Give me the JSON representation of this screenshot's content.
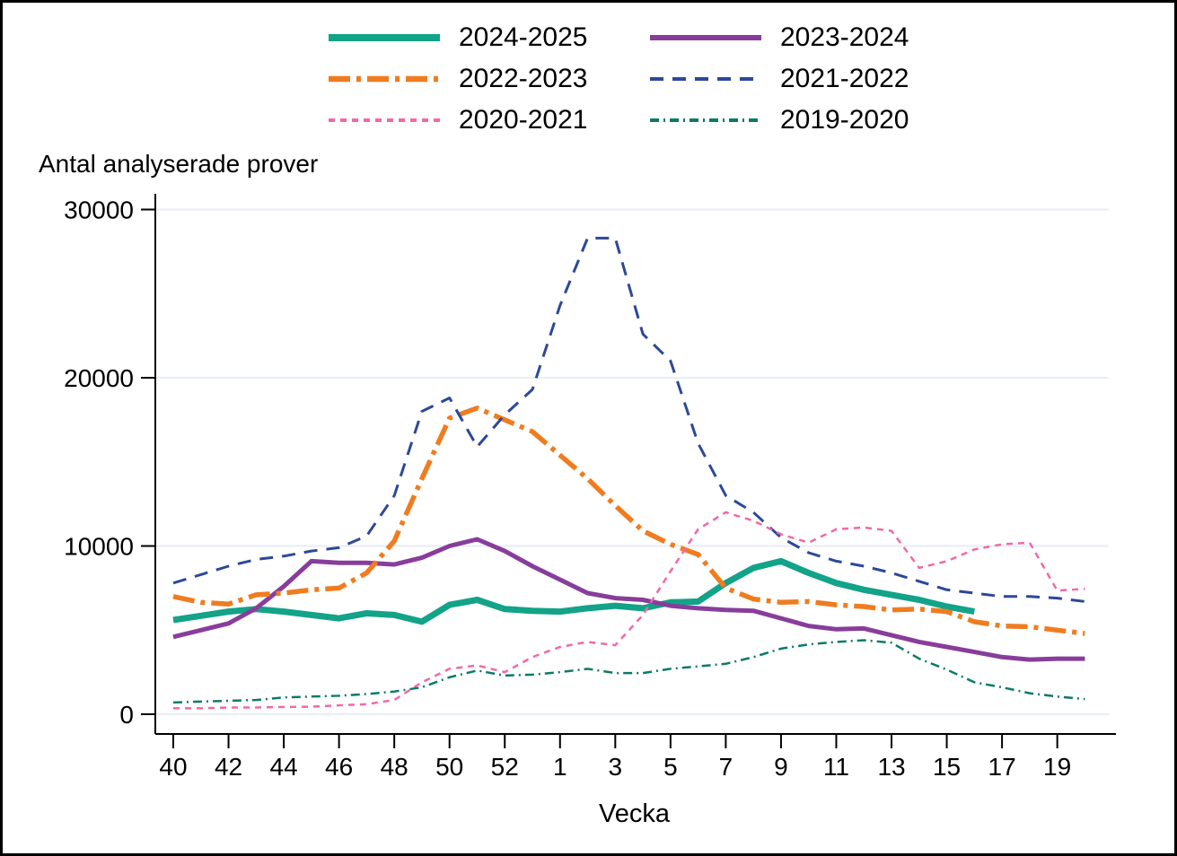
{
  "figure": {
    "background": "#ffffff",
    "border_color": "#000000",
    "axis_color": "#000000",
    "gridline_color": "#e8eef4"
  },
  "labels": {
    "y_axis_title": "Antal analyserade prover",
    "x_axis_title": "Vecka"
  },
  "legend": {
    "items": [
      {
        "label": "2024-2025"
      },
      {
        "label": "2023-2024"
      },
      {
        "label": "2022-2023"
      },
      {
        "label": "2021-2022"
      },
      {
        "label": "2020-2021"
      },
      {
        "label": "2019-2020"
      }
    ]
  },
  "chart_data": {
    "type": "line",
    "title": "",
    "xlabel": "Vecka",
    "ylabel": "Antal analyserade prover",
    "ylim": [
      0,
      30000
    ],
    "y_ticks": [
      0,
      10000,
      20000,
      30000
    ],
    "grid": "horizontal",
    "legend_position": "top",
    "categories": [
      "40",
      "41",
      "42",
      "43",
      "44",
      "45",
      "46",
      "47",
      "48",
      "49",
      "50",
      "51",
      "52",
      "53",
      "1",
      "2",
      "3",
      "4",
      "5",
      "6",
      "7",
      "8",
      "9",
      "10",
      "11",
      "12",
      "13",
      "14",
      "15",
      "16",
      "17",
      "18",
      "19",
      "20"
    ],
    "x_tick_labels": [
      "40",
      "42",
      "44",
      "46",
      "48",
      "50",
      "52",
      "1",
      "3",
      "5",
      "7",
      "9",
      "11",
      "13",
      "15",
      "17",
      "19"
    ],
    "series": [
      {
        "name": "2024-2025",
        "color": "#12a388",
        "style": "solid",
        "width": 7,
        "values": [
          5600,
          5850,
          6100,
          6250,
          6100,
          5900,
          5700,
          6000,
          5900,
          5500,
          6500,
          6800,
          6250,
          6150,
          6100,
          6300,
          6450,
          6300,
          6650,
          6700,
          7800,
          8700,
          9100,
          8400,
          7800,
          7400,
          7100,
          6800,
          6400,
          6100,
          null,
          null,
          null,
          null
        ]
      },
      {
        "name": "2023-2024",
        "color": "#883d9b",
        "style": "solid",
        "width": 5,
        "values": [
          4600,
          5000,
          5400,
          6300,
          7600,
          9100,
          9000,
          9000,
          8900,
          9300,
          10000,
          10400,
          9700,
          8800,
          8000,
          7200,
          6900,
          6800,
          6450,
          6300,
          6200,
          6150,
          5700,
          5250,
          5050,
          5100,
          4700,
          4300,
          4000,
          3700,
          3400,
          3250,
          3300,
          3300
        ]
      },
      {
        "name": "2022-2023",
        "color": "#f07c20",
        "style": "longdash-dot",
        "width": 5.5,
        "values": [
          7000,
          6650,
          6550,
          7100,
          7200,
          7400,
          7500,
          8400,
          10300,
          14000,
          17600,
          18200,
          17500,
          16800,
          15400,
          14000,
          12400,
          10900,
          10100,
          9500,
          7500,
          6850,
          6650,
          6700,
          6500,
          6400,
          6200,
          6250,
          6100,
          5500,
          5250,
          5200,
          5000,
          4800
        ]
      },
      {
        "name": "2021-2022",
        "color": "#2c4899",
        "style": "dash",
        "width": 3,
        "values": [
          7800,
          8300,
          8800,
          9200,
          9400,
          9700,
          9900,
          10600,
          13000,
          18000,
          18800,
          15900,
          17800,
          19300,
          24300,
          28300,
          28300,
          22600,
          21000,
          16100,
          13000,
          12000,
          10500,
          9600,
          9100,
          8800,
          8400,
          7900,
          7400,
          7200,
          7000,
          7000,
          6900,
          6700
        ]
      },
      {
        "name": "2020-2021",
        "color": "#f268a8",
        "style": "shortdash",
        "width": 2.5,
        "values": [
          350,
          350,
          400,
          400,
          430,
          450,
          530,
          600,
          850,
          1900,
          2700,
          2900,
          2500,
          3400,
          4000,
          4300,
          4100,
          5900,
          8500,
          11000,
          12000,
          11500,
          10700,
          10200,
          11000,
          11100,
          10900,
          8700,
          9100,
          9800,
          10100,
          10200,
          7350,
          7450
        ]
      },
      {
        "name": "2019-2020",
        "color": "#0c7a6a",
        "style": "dash-dot",
        "width": 2.5,
        "values": [
          700,
          750,
          800,
          850,
          1000,
          1050,
          1100,
          1200,
          1350,
          1600,
          2200,
          2600,
          2300,
          2350,
          2500,
          2700,
          2450,
          2450,
          2700,
          2850,
          3000,
          3400,
          3900,
          4150,
          4300,
          4400,
          4250,
          3300,
          2650,
          1900,
          1600,
          1250,
          1050,
          900
        ]
      }
    ]
  }
}
